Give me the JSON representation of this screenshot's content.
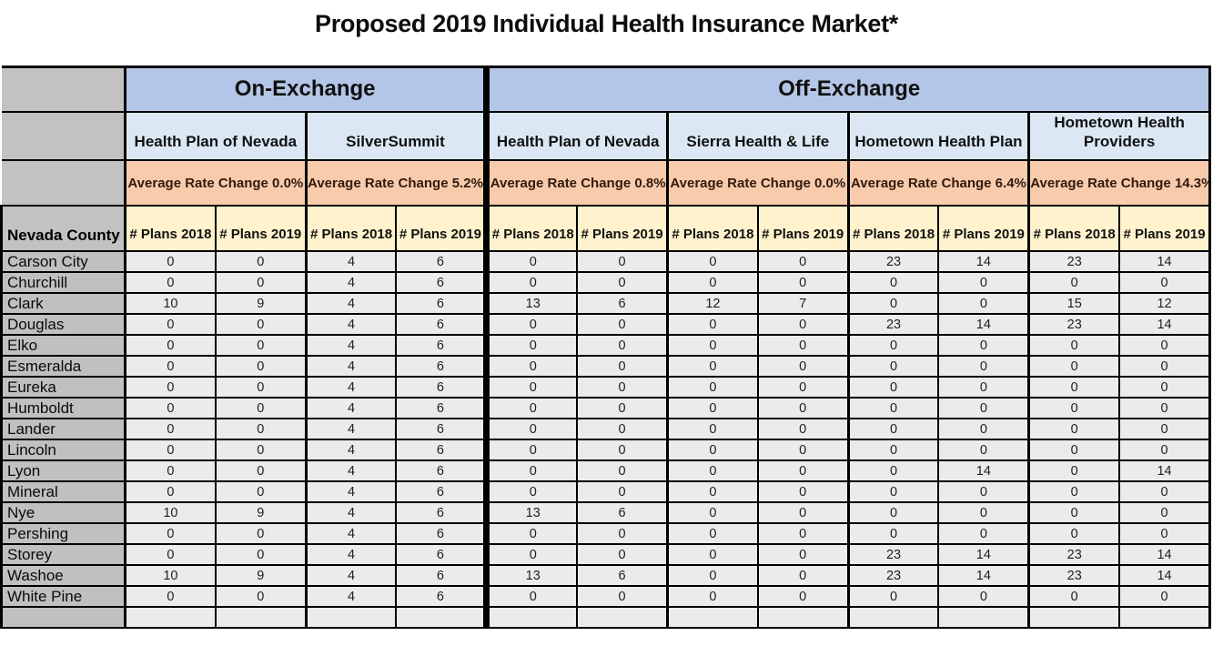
{
  "title": "Proposed 2019 Individual Health Insurance Market*",
  "chart_data": {
    "type": "table",
    "title": "Proposed 2019 Individual Health Insurance Market*",
    "exchange_groups": [
      {
        "label": "On-Exchange",
        "carrier_count": 2
      },
      {
        "label": "Off-Exchange",
        "carrier_count": 4
      }
    ],
    "carriers": [
      {
        "exchange": "On-Exchange",
        "name": "Health Plan of Nevada",
        "avg_rate_change": "0.0%",
        "rate_label": "Average Rate Change 0.0%"
      },
      {
        "exchange": "On-Exchange",
        "name": "SilverSummit",
        "avg_rate_change": "5.2%",
        "rate_label": "Average Rate Change 5.2%"
      },
      {
        "exchange": "Off-Exchange",
        "name": "Health Plan of Nevada",
        "avg_rate_change": "0.8%",
        "rate_label": "Average Rate Change 0.8%"
      },
      {
        "exchange": "Off-Exchange",
        "name": "Sierra Health & Life",
        "avg_rate_change": "0.0%",
        "rate_label": "Average Rate Change 0.0%"
      },
      {
        "exchange": "Off-Exchange",
        "name": "Hometown Health Plan",
        "avg_rate_change": "6.4%",
        "rate_label": "Average Rate Change 6.4%"
      },
      {
        "exchange": "Off-Exchange",
        "name": "Hometown Health Providers",
        "avg_rate_change": "14.3%",
        "rate_label": "Average Rate Change 14.3%"
      }
    ],
    "row_header": "Nevada County",
    "plan_year_headers": [
      "# Plans 2018",
      "# Plans 2019"
    ],
    "rows": [
      {
        "county": "Carson City",
        "values": [
          0,
          0,
          4,
          6,
          0,
          0,
          0,
          0,
          23,
          14,
          23,
          14
        ]
      },
      {
        "county": "Churchill",
        "values": [
          0,
          0,
          4,
          6,
          0,
          0,
          0,
          0,
          0,
          0,
          0,
          0
        ]
      },
      {
        "county": "Clark",
        "values": [
          10,
          9,
          4,
          6,
          13,
          6,
          12,
          7,
          0,
          0,
          15,
          12
        ]
      },
      {
        "county": "Douglas",
        "values": [
          0,
          0,
          4,
          6,
          0,
          0,
          0,
          0,
          23,
          14,
          23,
          14
        ]
      },
      {
        "county": "Elko",
        "values": [
          0,
          0,
          4,
          6,
          0,
          0,
          0,
          0,
          0,
          0,
          0,
          0
        ]
      },
      {
        "county": "Esmeralda",
        "values": [
          0,
          0,
          4,
          6,
          0,
          0,
          0,
          0,
          0,
          0,
          0,
          0
        ]
      },
      {
        "county": "Eureka",
        "values": [
          0,
          0,
          4,
          6,
          0,
          0,
          0,
          0,
          0,
          0,
          0,
          0
        ]
      },
      {
        "county": "Humboldt",
        "values": [
          0,
          0,
          4,
          6,
          0,
          0,
          0,
          0,
          0,
          0,
          0,
          0
        ]
      },
      {
        "county": "Lander",
        "values": [
          0,
          0,
          4,
          6,
          0,
          0,
          0,
          0,
          0,
          0,
          0,
          0
        ]
      },
      {
        "county": "Lincoln",
        "values": [
          0,
          0,
          4,
          6,
          0,
          0,
          0,
          0,
          0,
          0,
          0,
          0
        ]
      },
      {
        "county": "Lyon",
        "values": [
          0,
          0,
          4,
          6,
          0,
          0,
          0,
          0,
          0,
          14,
          0,
          14
        ]
      },
      {
        "county": "Mineral",
        "values": [
          0,
          0,
          4,
          6,
          0,
          0,
          0,
          0,
          0,
          0,
          0,
          0
        ]
      },
      {
        "county": "Nye",
        "values": [
          10,
          9,
          4,
          6,
          13,
          6,
          0,
          0,
          0,
          0,
          0,
          0
        ]
      },
      {
        "county": "Pershing",
        "values": [
          0,
          0,
          4,
          6,
          0,
          0,
          0,
          0,
          0,
          0,
          0,
          0
        ]
      },
      {
        "county": "Storey",
        "values": [
          0,
          0,
          4,
          6,
          0,
          0,
          0,
          0,
          23,
          14,
          23,
          14
        ]
      },
      {
        "county": "Washoe",
        "values": [
          10,
          9,
          4,
          6,
          13,
          6,
          0,
          0,
          23,
          14,
          23,
          14
        ]
      },
      {
        "county": "White Pine",
        "values": [
          0,
          0,
          4,
          6,
          0,
          0,
          0,
          0,
          0,
          0,
          0,
          0
        ]
      }
    ]
  },
  "colors": {
    "exchange_band": "#b4c6e7",
    "carrier_band": "#dbe8f4",
    "rate_band": "#f8cbad",
    "rate_text": "#331a0c",
    "plan_year_band": "#fff2cc",
    "county_column": "#c0c0c0",
    "data_cell": "#ebebeb",
    "grid_line": "#000000",
    "background": "#ffffff"
  }
}
